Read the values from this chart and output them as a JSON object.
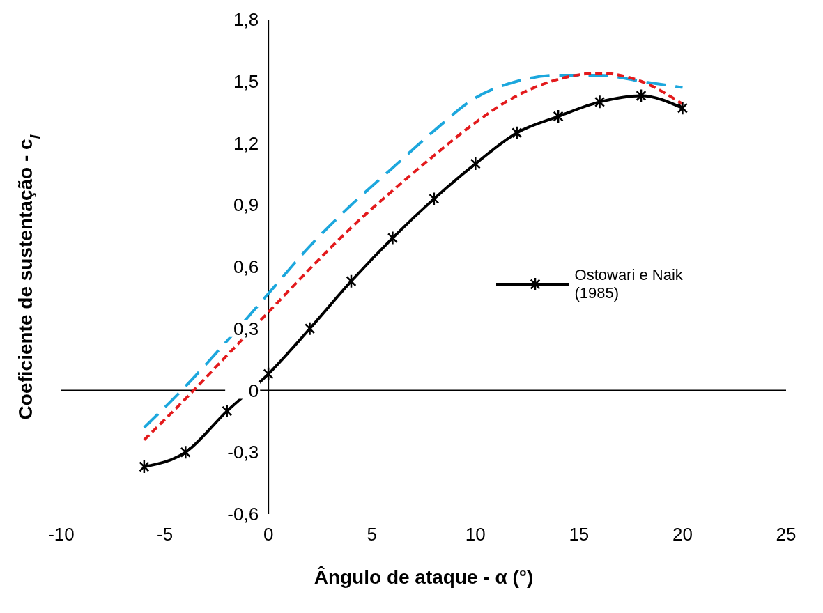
{
  "chart_data": {
    "type": "line",
    "xlabel": "Ângulo de ataque - α (°)",
    "ylabel": "Coeficiente de sustentação - c$_{l}$",
    "x": [
      -6,
      -4,
      -2,
      0,
      2,
      4,
      6,
      8,
      10,
      12,
      14,
      16,
      18,
      20
    ],
    "series": [
      {
        "color": "#1ca7dd",
        "line_style": "dashed",
        "marker": "none",
        "values": [
          -0.18,
          0.02,
          0.24,
          0.47,
          0.7,
          0.9,
          1.08,
          1.26,
          1.42,
          1.5,
          1.53,
          1.53,
          1.5,
          1.47
        ]
      },
      {
        "color": "#e31a1c",
        "line_style": "dotted",
        "marker": "none",
        "values": [
          -0.24,
          -0.04,
          0.17,
          0.38,
          0.59,
          0.79,
          0.97,
          1.14,
          1.3,
          1.43,
          1.51,
          1.54,
          1.5,
          1.39
        ]
      },
      {
        "name": "Ostowari e Naik (1985)",
        "color": "#000000",
        "line_style": "solid",
        "marker": "cross",
        "values": [
          -0.37,
          -0.3,
          -0.1,
          0.08,
          0.3,
          0.53,
          0.74,
          0.93,
          1.1,
          1.25,
          1.33,
          1.4,
          1.43,
          1.37
        ]
      }
    ],
    "xlim": [
      -10,
      25
    ],
    "xticks": [
      -10,
      -5,
      0,
      5,
      10,
      15,
      20,
      25
    ],
    "ylim": [
      -0.6,
      1.8
    ],
    "yticks": [
      {
        "value": -0.6,
        "label": "-0,6"
      },
      {
        "value": -0.3,
        "label": "-0,3"
      },
      0,
      {
        "value": 0.3,
        "label": "0,3"
      },
      {
        "value": 0.6,
        "label": "0,6"
      },
      {
        "value": 0.9,
        "label": "0,9"
      },
      {
        "value": 1.2,
        "label": "1,2"
      },
      {
        "value": 1.5,
        "label": "1,5"
      },
      {
        "value": 1.8,
        "label": "1,8"
      }
    ],
    "ref_lines": [
      {
        "axis": "y",
        "value": 0,
        "color": "#000000"
      }
    ],
    "grid": false,
    "legend": "right"
  }
}
